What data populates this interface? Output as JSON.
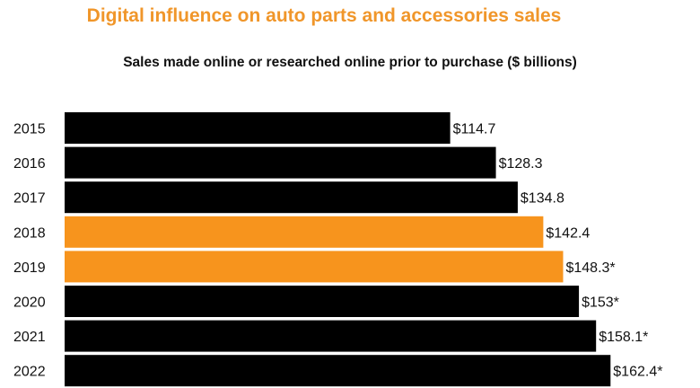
{
  "title": "Digital influence on auto parts and accessories sales",
  "subtitle": "Sales made online or researched online prior to purchase ($ billions)",
  "chart_data": {
    "type": "bar",
    "orientation": "horizontal",
    "categories": [
      "2015",
      "2016",
      "2017",
      "2018",
      "2019",
      "2020",
      "2021",
      "2022"
    ],
    "values": [
      114.7,
      128.3,
      134.8,
      142.4,
      148.3,
      153,
      158.1,
      162.4
    ],
    "value_labels": [
      "$114.7",
      "$128.3",
      "$134.8",
      "$142.4",
      "$148.3*",
      "$153*",
      "$158.1*",
      "$162.4*"
    ],
    "bar_colors": [
      "#000000",
      "#000000",
      "#000000",
      "#f7941d",
      "#f7941d",
      "#000000",
      "#000000",
      "#000000"
    ],
    "xlim": [
      0,
      173
    ]
  }
}
